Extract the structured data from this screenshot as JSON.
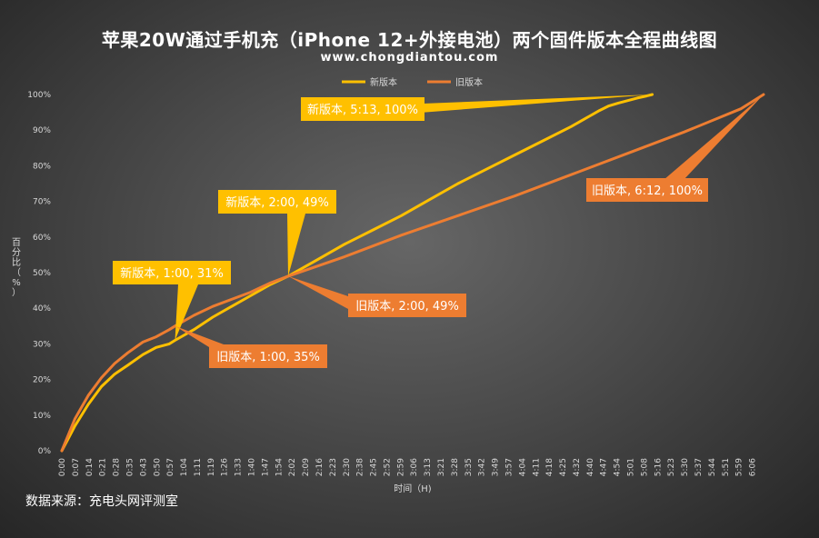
{
  "title": "苹果20W通过手机充（iPhone 12+外接电池）两个固件版本全程曲线图",
  "subtitle": "www.chongdiantou.com",
  "source": "数据来源：充电头网评测室",
  "chart_data": {
    "type": "line",
    "title": "苹果20W通过手机充（iPhone 12+外接电池）两个固件版本全程曲线图",
    "subtitle": "www.chongdiantou.com",
    "xlabel": "时间（H)",
    "ylabel": "百分比（%）",
    "ylim": [
      0,
      100
    ],
    "xlim_minutes": [
      0,
      372
    ],
    "grid": false,
    "legend_position": "top-center",
    "y_ticks": [
      "0%",
      "10%",
      "20%",
      "30%",
      "40%",
      "50%",
      "60%",
      "70%",
      "80%",
      "90%",
      "100%"
    ],
    "x_ticks": [
      "0:00",
      "0:07",
      "0:14",
      "0:21",
      "0:28",
      "0:35",
      "0:43",
      "0:50",
      "0:57",
      "1:04",
      "1:11",
      "1:19",
      "1:26",
      "1:33",
      "1:40",
      "1:47",
      "1:54",
      "2:02",
      "2:09",
      "2:16",
      "2:23",
      "2:30",
      "2:38",
      "2:45",
      "2:52",
      "2:59",
      "3:06",
      "3:13",
      "3:21",
      "3:28",
      "3:35",
      "3:42",
      "3:49",
      "3:57",
      "4:04",
      "4:11",
      "4:18",
      "4:25",
      "4:32",
      "4:40",
      "4:47",
      "4:54",
      "5:01",
      "5:08",
      "5:16",
      "5:23",
      "5:30",
      "5:37",
      "5:44",
      "5:51",
      "5:59",
      "6:06"
    ],
    "series": [
      {
        "name": "新版本",
        "color": "#ffc000",
        "x_minutes": [
          0,
          7,
          14,
          21,
          28,
          35,
          43,
          50,
          57,
          60,
          70,
          80,
          90,
          100,
          110,
          120,
          135,
          150,
          165,
          180,
          195,
          210,
          225,
          240,
          255,
          270,
          280,
          285,
          290,
          295,
          300,
          305,
          310,
          313
        ],
        "values": [
          0,
          7,
          13,
          18,
          21.5,
          24,
          27,
          29,
          30,
          31,
          34,
          37.5,
          40.5,
          43.5,
          46.5,
          49,
          53.5,
          58,
          62,
          66,
          70.5,
          75,
          79,
          83,
          87,
          91,
          94,
          95.5,
          96.8,
          97.6,
          98.3,
          99,
          99.6,
          100
        ]
      },
      {
        "name": "旧版本",
        "color": "#ed7d31",
        "x_minutes": [
          0,
          7,
          14,
          21,
          28,
          35,
          43,
          50,
          57,
          60,
          70,
          80,
          90,
          100,
          110,
          120,
          150,
          180,
          210,
          240,
          270,
          300,
          330,
          360,
          372
        ],
        "values": [
          0,
          9,
          15.5,
          20.5,
          24.5,
          27.5,
          30.5,
          32,
          34,
          35,
          38,
          40.5,
          42.5,
          44.5,
          47,
          49,
          54.5,
          60.5,
          66,
          71.5,
          77.5,
          83.5,
          89.5,
          96,
          100
        ]
      }
    ],
    "annotations": [
      {
        "text": "新版本, 5:13, 100%",
        "series": "新版本",
        "x_minutes": 313,
        "y": 100
      },
      {
        "text": "旧版本, 6:12, 100%",
        "series": "旧版本",
        "x_minutes": 372,
        "y": 100
      },
      {
        "text": "新版本, 2:00, 49%",
        "series": "新版本",
        "x_minutes": 120,
        "y": 49
      },
      {
        "text": "旧版本, 2:00, 49%",
        "series": "旧版本",
        "x_minutes": 120,
        "y": 49
      },
      {
        "text": "新版本, 1:00, 31%",
        "series": "新版本",
        "x_minutes": 60,
        "y": 31
      },
      {
        "text": "旧版本, 1:00, 35%",
        "series": "旧版本",
        "x_minutes": 60,
        "y": 35
      }
    ]
  }
}
